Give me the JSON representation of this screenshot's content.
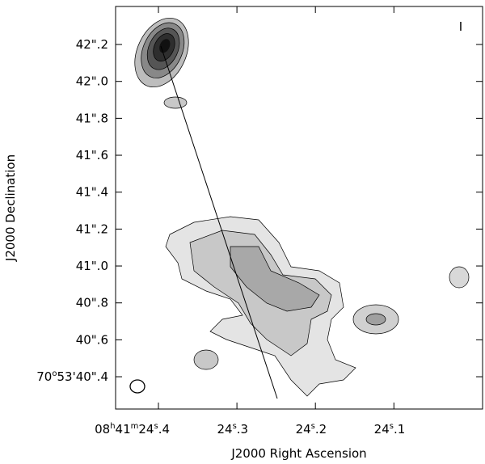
{
  "chart_data": {
    "type": "contour",
    "stokes_label": "I",
    "x_label": "J2000 Right Ascension",
    "y_label": "J2000 Declination",
    "xlim": [
      24.4546,
      23.987
    ],
    "ylim": [
      40.225,
      42.406
    ],
    "xticks": [
      {
        "value": 24.4,
        "label": "08h41m24s.4"
      },
      {
        "value": 24.3,
        "label": "24s.3"
      },
      {
        "value": 24.2,
        "label": "24s.2"
      },
      {
        "value": 24.1,
        "label": "24s.1"
      }
    ],
    "yticks": [
      {
        "value": 40.4,
        "label": "70o53'40\".4"
      },
      {
        "value": 40.6,
        "label": "40\".6"
      },
      {
        "value": 40.8,
        "label": "40\".8"
      },
      {
        "value": 41.0,
        "label": "41\".0"
      },
      {
        "value": 41.2,
        "label": "41\".2"
      },
      {
        "value": 41.4,
        "label": "41\".4"
      },
      {
        "value": 41.6,
        "label": "41\".6"
      },
      {
        "value": 41.8,
        "label": "41\".8"
      },
      {
        "value": 42.0,
        "label": "42\".0"
      },
      {
        "value": 42.2,
        "label": "42\".2"
      }
    ]
  }
}
